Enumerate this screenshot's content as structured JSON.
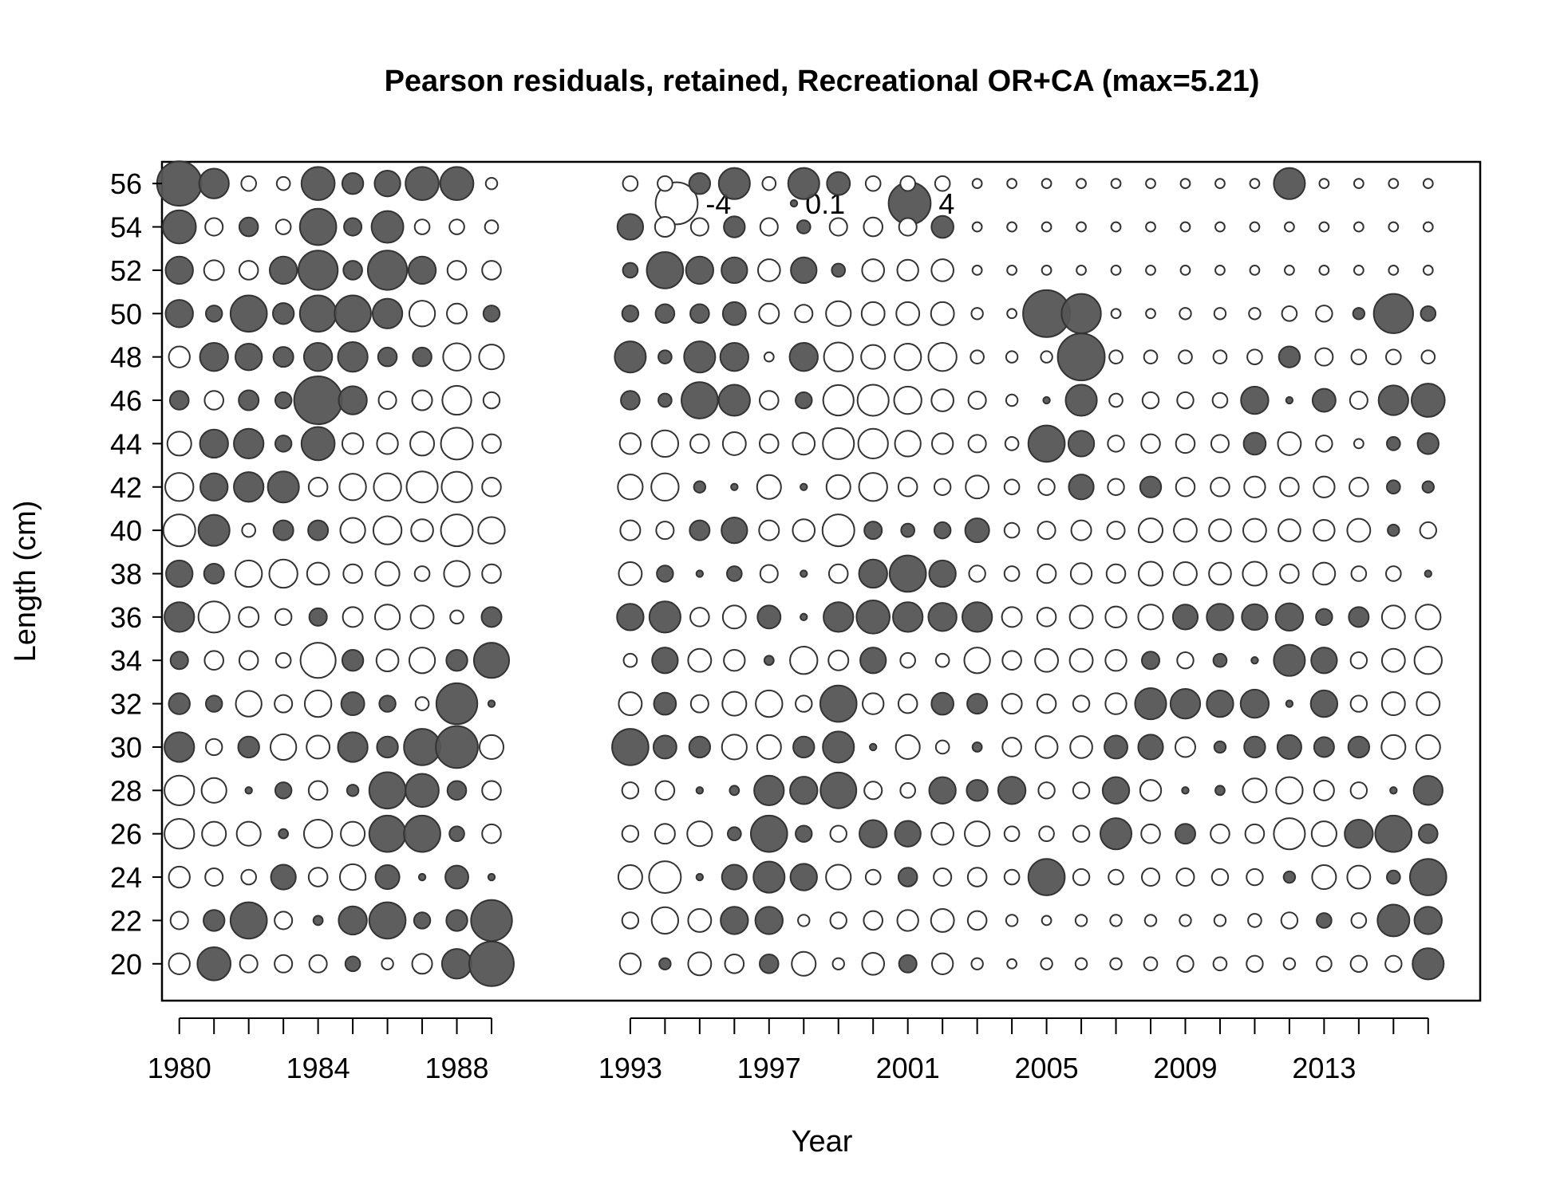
{
  "chart_data": {
    "type": "scatter",
    "subtype": "bubble",
    "title": "Pearson residuals, retained, Recreational OR+CA (max=5.21)",
    "xlabel": "Year",
    "ylabel": "Length (cm)",
    "x_ticks": [
      1980,
      1984,
      1988,
      1993,
      1997,
      2001,
      2005,
      2009,
      2013
    ],
    "y_ticks": [
      20,
      22,
      24,
      26,
      28,
      30,
      32,
      34,
      36,
      38,
      40,
      42,
      44,
      46,
      48,
      50,
      52,
      54,
      56
    ],
    "xlim": [
      1979.5,
      2017.5
    ],
    "ylim": [
      18.3,
      57.0
    ],
    "grid": false,
    "legend": {
      "placement": "top-center",
      "entries": [
        {
          "label": "-4",
          "value": -4
        },
        {
          "label": "0.1",
          "value": 0.1
        },
        {
          "label": "4",
          "value": 4
        }
      ]
    },
    "colors": {
      "positive_fill": "#555555",
      "negative_fill": "#ffffff",
      "stroke": "#333333"
    },
    "years": [
      1980,
      1981,
      1982,
      1983,
      1984,
      1985,
      1986,
      1987,
      1988,
      1989,
      1993,
      1994,
      1995,
      1996,
      1997,
      1998,
      1999,
      2000,
      2001,
      2002,
      2003,
      2004,
      2005,
      2006,
      2007,
      2008,
      2009,
      2010,
      2011,
      2012,
      2013,
      2014,
      2015,
      2016
    ],
    "lengths": [
      20,
      22,
      24,
      26,
      28,
      30,
      32,
      34,
      36,
      38,
      40,
      42,
      44,
      46,
      48,
      50,
      52,
      54,
      56
    ],
    "residuals": [
      [
        -1,
        2.5,
        -0.7,
        -0.7,
        -0.7,
        0.5,
        -0.3,
        -0.9,
        2,
        4.5
      ],
      [
        -0.7,
        1,
        3,
        -0.7,
        0.2,
        1.8,
        3,
        0.6,
        1,
        3.8
      ],
      [
        -1,
        -0.7,
        -0.5,
        1.4,
        -0.8,
        -1.5,
        1.3,
        0.1,
        1.2,
        0.1
      ],
      [
        -2,
        -1.3,
        -1.3,
        0.2,
        -1.8,
        -1.3,
        3,
        3,
        0.5,
        -0.8
      ],
      [
        -2,
        -1.4,
        0.1,
        0.6,
        -0.8,
        0.3,
        3,
        2.5,
        0.8,
        -0.8
      ],
      [
        2,
        -0.6,
        1,
        -1.5,
        -1.2,
        2,
        1,
        3,
        4,
        -1.3
      ],
      [
        1,
        0.6,
        -1.5,
        -0.7,
        -1.6,
        1.2,
        0.6,
        -0.4,
        3.8,
        0.1
      ],
      [
        0.7,
        -0.8,
        -0.8,
        -0.5,
        -2.8,
        1,
        -1.1,
        -1.5,
        1,
        2.8
      ],
      [
        2,
        -2.2,
        -0.9,
        -0.6,
        0.7,
        -0.9,
        -1.4,
        -1.2,
        -0.4,
        0.9
      ],
      [
        1.6,
        0.9,
        -1.6,
        -1.8,
        -1.1,
        -0.8,
        -1.3,
        -0.5,
        -1.5,
        -0.8
      ],
      [
        -2.3,
        2.2,
        -0.4,
        0.9,
        0.9,
        -1.4,
        -1.8,
        -1.1,
        -2.3,
        -1.6
      ],
      [
        -1.8,
        1.7,
        2,
        2.2,
        -0.8,
        -1.6,
        -1.7,
        -2.2,
        -2.1,
        -0.8
      ],
      [
        -1.3,
        1.8,
        2,
        0.6,
        2.5,
        -1,
        -1,
        -1.3,
        -2.3,
        -0.8
      ],
      [
        0.8,
        -0.8,
        0.9,
        0.6,
        5.2,
        1.8,
        -0.7,
        -0.9,
        -1.9,
        -0.6
      ],
      [
        -1,
        1.8,
        1.6,
        0.9,
        1.8,
        2,
        0.8,
        0.8,
        -1.7,
        -1.4
      ],
      [
        1.7,
        0.6,
        3,
        1,
        3,
        3,
        2,
        -1.5,
        -0.9,
        0.6
      ],
      [
        1.7,
        -0.9,
        -0.8,
        1.7,
        3.5,
        0.8,
        3.5,
        1.7,
        -0.8,
        -0.8
      ],
      [
        2.5,
        -0.7,
        0.8,
        -0.5,
        3,
        0.7,
        2.3,
        -0.5,
        -0.5,
        -0.4
      ],
      [
        4.5,
        2,
        -0.5,
        -0.4,
        2.5,
        1,
        1.5,
        2.5,
        2.5,
        -0.3
      ]
    ],
    "residuals_b": [
      [
        -1,
        0.3,
        -1.2,
        -0.8,
        0.8,
        -1.3,
        -0.3,
        -1.1,
        0.7,
        -1,
        -0.3,
        -0.2,
        -0.3,
        -0.3,
        -0.3,
        -0.4,
        -0.6,
        -0.4,
        -0.6,
        -0.3,
        -0.5,
        -0.6,
        -0.6,
        2.2
      ],
      [
        -0.6,
        -1.6,
        -1.2,
        1.7,
        1.7,
        -0.3,
        -0.6,
        -0.8,
        -1,
        -1.2,
        -0.8,
        -0.3,
        -0.2,
        -0.3,
        -0.3,
        -0.3,
        -0.3,
        -0.3,
        -0.4,
        -0.6,
        0.5,
        -0.5,
        2.3,
        1.7
      ],
      [
        -1.3,
        -2.3,
        0.1,
        1.4,
        2.2,
        1.6,
        -1.4,
        -0.5,
        0.8,
        -0.7,
        -0.8,
        -0.5,
        3,
        -0.6,
        -0.5,
        -0.7,
        -0.7,
        -0.6,
        -0.6,
        0.3,
        -1.3,
        -1.2,
        0.4,
        3
      ],
      [
        -0.6,
        -0.9,
        -1.4,
        0.4,
        3,
        0.6,
        -0.6,
        1.7,
        1.5,
        -1.1,
        -1.4,
        -0.5,
        -0.5,
        -0.6,
        2.2,
        -0.8,
        0.9,
        -0.8,
        -0.8,
        -2.2,
        -1.4,
        1.8,
        3,
        0.8
      ],
      [
        -0.6,
        -0.8,
        0.1,
        0.2,
        2,
        1.7,
        2.9,
        -0.7,
        -0.5,
        1.6,
        1,
        1.7,
        -0.6,
        -0.6,
        1.6,
        -1,
        0.1,
        0.2,
        -1.3,
        -1.6,
        -0.9,
        -0.6,
        0.1,
        1.9
      ],
      [
        3,
        1.2,
        1,
        -1.4,
        -1.3,
        1,
        2.2,
        0.1,
        -1.3,
        -0.4,
        0.2,
        -0.8,
        -1.1,
        -1.1,
        1.2,
        1.4,
        -0.9,
        0.3,
        1,
        1.3,
        0.9,
        1,
        -1.3,
        -1.3
      ],
      [
        -1.2,
        1.1,
        -0.7,
        -1.3,
        -1.6,
        -0.6,
        3,
        -1,
        -0.8,
        1.1,
        0.9,
        -0.9,
        -0.8,
        -0.6,
        -1,
        2.2,
        2,
        1.6,
        1.8,
        0.1,
        1.6,
        -0.6,
        -1.2,
        -1.2
      ],
      [
        -0.4,
        1.5,
        -1.2,
        -1,
        0.2,
        -1.7,
        -0.9,
        1.5,
        -0.5,
        -0.4,
        -1.5,
        -0.8,
        -1.2,
        -1.2,
        -1,
        0.7,
        -0.6,
        0.4,
        0.1,
        2.2,
        1.5,
        -0.6,
        -1.2,
        -1.7
      ],
      [
        1.6,
        2.2,
        -0.8,
        -1.2,
        1.2,
        0.1,
        2,
        2.5,
        2,
        1.8,
        2,
        -0.9,
        -0.8,
        -1.2,
        -1,
        -1.4,
        1.4,
        1.6,
        1.5,
        1.7,
        0.6,
        0.9,
        -1.2,
        -1.4
      ],
      [
        -1.2,
        0.6,
        0.1,
        0.5,
        -0.7,
        0.1,
        -0.8,
        1.8,
        3,
        1.6,
        -0.6,
        -0.5,
        -0.8,
        -1,
        -0.8,
        -1.3,
        -1.2,
        -1.1,
        -1.3,
        -0.8,
        -1.1,
        -0.5,
        -0.5,
        0.1
      ],
      [
        -0.9,
        -0.7,
        0.9,
        1.5,
        -0.9,
        -1.1,
        -2.3,
        0.7,
        0.4,
        0.6,
        1.3,
        -0.5,
        -0.7,
        -0.9,
        -0.7,
        -1.3,
        -1.2,
        -1.1,
        -1.2,
        -1.1,
        -1,
        -1.2,
        0.3,
        -0.6
      ],
      [
        -1.4,
        -1.7,
        0.3,
        0.1,
        -1.3,
        0.1,
        -1.3,
        -1.8,
        -0.8,
        -0.6,
        -1.2,
        -0.5,
        -0.6,
        1.4,
        -0.6,
        1,
        -0.8,
        -0.8,
        -1,
        -0.8,
        -1,
        -0.8,
        0.4,
        0.3
      ],
      [
        -1,
        -1.6,
        -0.8,
        -1.2,
        -0.8,
        -1.1,
        -2.2,
        -2,
        -1.5,
        -1,
        -0.7,
        -0.4,
        3,
        1.5,
        -0.6,
        -0.8,
        -0.8,
        -0.7,
        1.1,
        -1.2,
        -0.6,
        -0.2,
        0.4,
        1
      ],
      [
        0.8,
        0.4,
        3,
        2.2,
        -0.8,
        0.6,
        -2.1,
        -2.2,
        -1.7,
        -1.1,
        -0.7,
        -0.3,
        0.1,
        2.2,
        -0.4,
        -0.6,
        -0.6,
        -0.5,
        1.7,
        0.1,
        1.2,
        -0.7,
        2,
        2.5
      ],
      [
        2.2,
        0.4,
        2.2,
        1.8,
        -0.2,
        1.8,
        -1.9,
        -1.3,
        -1.6,
        -1.8,
        -0.4,
        -0.3,
        -0.3,
        5,
        -0.4,
        -0.4,
        -0.4,
        -0.4,
        -0.5,
        1,
        -0.7,
        -0.5,
        -0.5,
        -0.4
      ],
      [
        0.6,
        0.8,
        0.8,
        1.2,
        -0.9,
        -0.7,
        -1.4,
        -1.2,
        -1.2,
        -1.2,
        -0.3,
        -0.2,
        5,
        3.5,
        -0.2,
        -0.2,
        -0.3,
        -0.3,
        -0.3,
        -0.5,
        -0.6,
        0.3,
        3.5,
        0.5
      ],
      [
        0.5,
        3,
        1.7,
        1.5,
        -1.1,
        1.5,
        0.4,
        -1.1,
        -1,
        -1.1,
        -0.2,
        -0.2,
        -0.2,
        -0.2,
        -0.2,
        -0.2,
        -0.2,
        -0.2,
        -0.2,
        -0.2,
        -0.2,
        -0.2,
        -0.2,
        -0.2
      ],
      [
        1.5,
        -0.9,
        -0.7,
        1,
        -0.7,
        0.4,
        -0.7,
        -0.8,
        -0.7,
        1.1,
        -0.2,
        -0.2,
        -0.2,
        -0.2,
        -0.2,
        -0.2,
        -0.2,
        -0.2,
        -0.2,
        -0.2,
        -0.2,
        -0.2,
        -0.2,
        -0.2
      ],
      [
        -0.5,
        -0.5,
        1,
        2.2,
        -0.4,
        2.2,
        1.2,
        -0.5,
        -0.5,
        -0.5,
        -0.2,
        -0.2,
        -0.2,
        -0.2,
        -0.2,
        -0.2,
        -0.2,
        -0.2,
        -0.2,
        2.2,
        -0.2,
        -0.2,
        -0.2,
        -0.2
      ]
    ]
  }
}
